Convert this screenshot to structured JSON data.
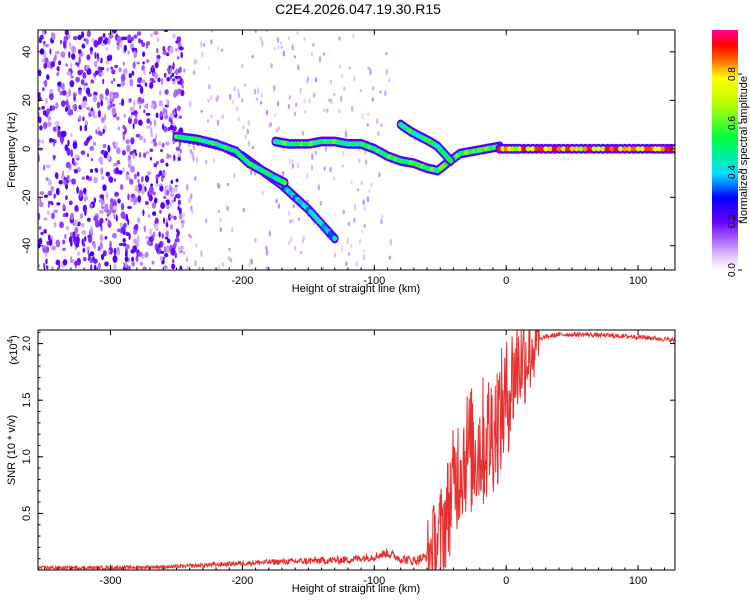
{
  "title": "C2E4.2026.047.19.30.R15",
  "chart_data": [
    {
      "type": "heatmap",
      "xlabel": "Height of straight line (km)",
      "ylabel": "Frequency (Hz)",
      "xlim": [
        -355,
        128
      ],
      "ylim": [
        -50,
        49
      ],
      "xticks": [
        -300,
        -200,
        -100,
        0,
        100
      ],
      "yticks": [
        -40,
        -20,
        0,
        20,
        40
      ],
      "colorbar": {
        "label": "Normalized spectral amplitude",
        "range": [
          0,
          0.98
        ],
        "ticks": [
          0.0,
          0.2,
          0.4,
          0.6,
          0.8
        ],
        "colormap": "white-violet-blue-cyan-green-yellow-red-magenta"
      },
      "background_noise": {
        "x_range": [
          -355,
          -245
        ],
        "y_range": [
          -50,
          49
        ],
        "amplitude": 0.15
      },
      "ridges": [
        {
          "name": "",
          "points": [
            [
              -250,
              5
            ],
            [
              -230,
              3
            ],
            [
              -215,
              1
            ],
            [
              -200,
              -3
            ],
            [
              -190,
              -7
            ],
            [
              -180,
              -11
            ],
            [
              -170,
              -15
            ],
            [
              -160,
              -20
            ],
            [
              -150,
              -25
            ],
            [
              -140,
              -31
            ],
            [
              -130,
              -37
            ]
          ]
        },
        {
          "name": "",
          "points": [
            [
              -250,
              5
            ],
            [
              -235,
              4
            ],
            [
              -220,
              2
            ],
            [
              -205,
              -1
            ],
            [
              -195,
              -6
            ],
            [
              -185,
              -9
            ],
            [
              -175,
              -12
            ],
            [
              -168,
              -14
            ]
          ]
        },
        {
          "name": "",
          "points": [
            [
              -175,
              3
            ],
            [
              -165,
              2
            ],
            [
              -150,
              2
            ],
            [
              -140,
              3
            ],
            [
              -130,
              3
            ],
            [
              -120,
              2
            ],
            [
              -110,
              2
            ],
            [
              -100,
              0
            ],
            [
              -90,
              -3
            ],
            [
              -80,
              -5
            ],
            [
              -70,
              -6
            ],
            [
              -60,
              -8
            ],
            [
              -52,
              -9
            ],
            [
              -45,
              -6
            ],
            [
              -35,
              -2
            ],
            [
              -25,
              -1
            ],
            [
              -15,
              0
            ],
            [
              -5,
              1
            ]
          ]
        },
        {
          "name": "",
          "points": [
            [
              -80,
              10
            ],
            [
              -72,
              7
            ],
            [
              -65,
              5
            ],
            [
              -58,
              3
            ],
            [
              -52,
              1
            ],
            [
              -47,
              -2
            ],
            [
              -42,
              -5
            ]
          ]
        },
        {
          "name": "",
          "points": [
            [
              -5,
              0
            ],
            [
              10,
              0
            ],
            [
              30,
              0
            ],
            [
              50,
              0
            ],
            [
              70,
              0
            ],
            [
              90,
              0
            ],
            [
              110,
              0
            ],
            [
              128,
              0
            ]
          ]
        }
      ]
    },
    {
      "type": "line",
      "xlabel": "Height of straight line (km)",
      "ylabel": "SNR (10 * v/v)",
      "y_multiplier": "(x10",
      "y_multiplier_exp": "4",
      "y_multiplier_close": ")",
      "xlim": [
        -355,
        128
      ],
      "ylim": [
        0,
        2.12
      ],
      "xticks": [
        -300,
        -200,
        -100,
        0,
        100
      ],
      "yticks": [
        0.5,
        1.0,
        1.5,
        2.0
      ],
      "ytick_labels": [
        "0.5",
        "1.0",
        "1.5",
        "2.0"
      ],
      "color": "#e83030",
      "x": [
        -355,
        -300,
        -250,
        -200,
        -180,
        -150,
        -120,
        -100,
        -90,
        -80,
        -70,
        -60,
        -55,
        -50,
        -45,
        -40,
        -35,
        -30,
        -25,
        -20,
        -15,
        -10,
        -5,
        0,
        5,
        10,
        15,
        20,
        25,
        30,
        40,
        50,
        60,
        80,
        100,
        128
      ],
      "y": [
        0.02,
        0.02,
        0.03,
        0.06,
        0.07,
        0.08,
        0.09,
        0.12,
        0.15,
        0.1,
        0.08,
        0.12,
        0.2,
        0.3,
        0.5,
        0.75,
        0.95,
        1.05,
        1.05,
        1.1,
        1.15,
        1.25,
        1.35,
        1.5,
        1.7,
        1.85,
        1.9,
        1.98,
        2.03,
        2.06,
        2.08,
        2.08,
        2.08,
        2.07,
        2.06,
        2.03
      ]
    }
  ]
}
